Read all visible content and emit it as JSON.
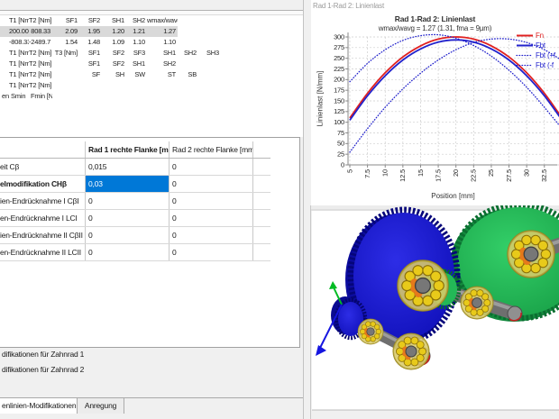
{
  "left_pane": {
    "results_table": {
      "rows": [
        {
          "type": "header",
          "cells": [
            "",
            "T1 [Nm]",
            "T2 [Nm]",
            "SF1",
            "SF2",
            "SH1",
            "SH2",
            "wmax/wavg",
            "",
            ""
          ]
        },
        {
          "type": "selected",
          "cells": [
            "",
            "200.00",
            "808.33",
            "2.09",
            "1.95",
            "1.20",
            "1.21",
            "1.27",
            "",
            ""
          ]
        },
        {
          "type": "data",
          "cells": [
            "",
            "-808.33",
            "-2489.7",
            "1.54",
            "1.48",
            "1.09",
            "1.10",
            "1.10",
            "",
            ""
          ]
        },
        {
          "type": "header",
          "cells": [
            "",
            "T1 [Nm]",
            "T2 [Nm]",
            "T3 [Nm]",
            "SF1",
            "SF2",
            "SF3",
            "SH1",
            "SH2",
            "SH3"
          ]
        },
        {
          "type": "header",
          "cells": [
            "",
            "T1 [Nm]",
            "T2 [Nm]",
            "",
            "SF1",
            "SF2",
            "SH1",
            "SH2",
            "",
            ""
          ]
        },
        {
          "type": "header",
          "cells": [
            "",
            "T1 [Nm]",
            "T2 [Nm]",
            "",
            "SF",
            "SH",
            "SW",
            "ST",
            "SB",
            ""
          ]
        },
        {
          "type": "header",
          "cells": [
            "",
            "T1 [Nm]",
            "T2 [Nm]",
            "",
            "",
            "",
            "",
            "",
            "",
            ""
          ]
        },
        {
          "type": "header-left",
          "cells": [
            "en",
            "Smin",
            "Fmin [N]",
            "",
            "",
            "",
            "",
            "",
            "",
            ""
          ]
        }
      ]
    },
    "mods_table": {
      "headers": [
        "Rad 1 rechte Flanke [mm]",
        "Rad 2 rechte Flanke [mm]"
      ],
      "rows": [
        {
          "label": "eit Cβ",
          "bold": false,
          "values": [
            "0,015",
            "0"
          ],
          "selected": -1
        },
        {
          "label": "elmodifikation CHβ",
          "bold": true,
          "values": [
            "0,03",
            "0"
          ],
          "selected": 0
        },
        {
          "label": "ien-Endrücknahme I CβI",
          "bold": false,
          "values": [
            "0",
            "0"
          ],
          "selected": -1
        },
        {
          "label": "en-Endrücknahme I LCI",
          "bold": false,
          "values": [
            "0",
            "0"
          ],
          "selected": -1
        },
        {
          "label": "ien-Endrücknahme II CβII",
          "bold": false,
          "values": [
            "0",
            "0"
          ],
          "selected": -1
        },
        {
          "label": "en-Endrücknahme II LCII",
          "bold": false,
          "values": [
            "0",
            "0"
          ],
          "selected": -1
        }
      ]
    },
    "footer_items": [
      "difikationen für Zahnrad 1",
      "difikationen für Zahnrad 2"
    ],
    "tabs": [
      {
        "label": "enlinien-Modifikationen",
        "active": true
      },
      {
        "label": "Anregung",
        "active": false
      }
    ]
  },
  "chart_window": {
    "window_title": "Rad 1-Rad 2: Linienlast"
  },
  "chart_data": {
    "type": "line",
    "title": "Rad 1-Rad 2: Linienlast",
    "subtitle": "wmax/wavg = 1.27 (1.31, fma = 9µm)",
    "xlabel": "Position [mm]",
    "ylabel": "Linienlast [N/mm]",
    "xlim": [
      4.75,
      34.8
    ],
    "ylim": [
      0,
      312
    ],
    "grid": true,
    "legend_position": "top-right",
    "x_ticks": [
      5,
      7.5,
      10,
      12.5,
      15,
      17.5,
      20,
      22.5,
      25,
      27.5,
      30,
      32.5
    ],
    "y_ticks": [
      0,
      25,
      50,
      75,
      100,
      125,
      150,
      175,
      200,
      225,
      250,
      275,
      300
    ],
    "x": [
      5,
      7.5,
      10,
      12.5,
      15,
      17.5,
      20,
      22.5,
      25,
      27.5,
      30,
      32.5,
      35
    ],
    "series": [
      {
        "name": "Fn",
        "color": "#e02020",
        "style": "solid",
        "values": [
          110,
          168,
          216,
          253,
          279,
          295,
          300,
          295,
          279,
          253,
          216,
          168,
          110
        ]
      },
      {
        "name": "Fbt",
        "color": "#2222cc",
        "style": "solid",
        "values": [
          105,
          162,
          209,
          246,
          272,
          288,
          293,
          288,
          272,
          246,
          209,
          162,
          105
        ]
      },
      {
        "name": "Fbt (+f",
        "color": "#2222cc",
        "style": "dotted",
        "values": [
          195,
          238,
          270,
          292,
          303,
          305,
          297,
          280,
          255,
          222,
          182,
          135,
          85
        ]
      },
      {
        "name": "Fbt (-f",
        "color": "#2222cc",
        "style": "dotted",
        "values": [
          30,
          85,
          135,
          178,
          215,
          246,
          270,
          287,
          295,
          295,
          287,
          270,
          245
        ]
      }
    ]
  },
  "colors": {
    "selection_blue": "#0078d7",
    "row_highlight": "#d9d9d9",
    "panel_bg": "#f0f0f0",
    "border": "#a0a0a0",
    "curve_red": "#e02020",
    "curve_blue": "#2222cc",
    "gear_blue": "#1717d8",
    "gear_green": "#22b14c",
    "bearing_yellow": "#e8ca1a",
    "shaft_gray": "#6f6f6f"
  }
}
